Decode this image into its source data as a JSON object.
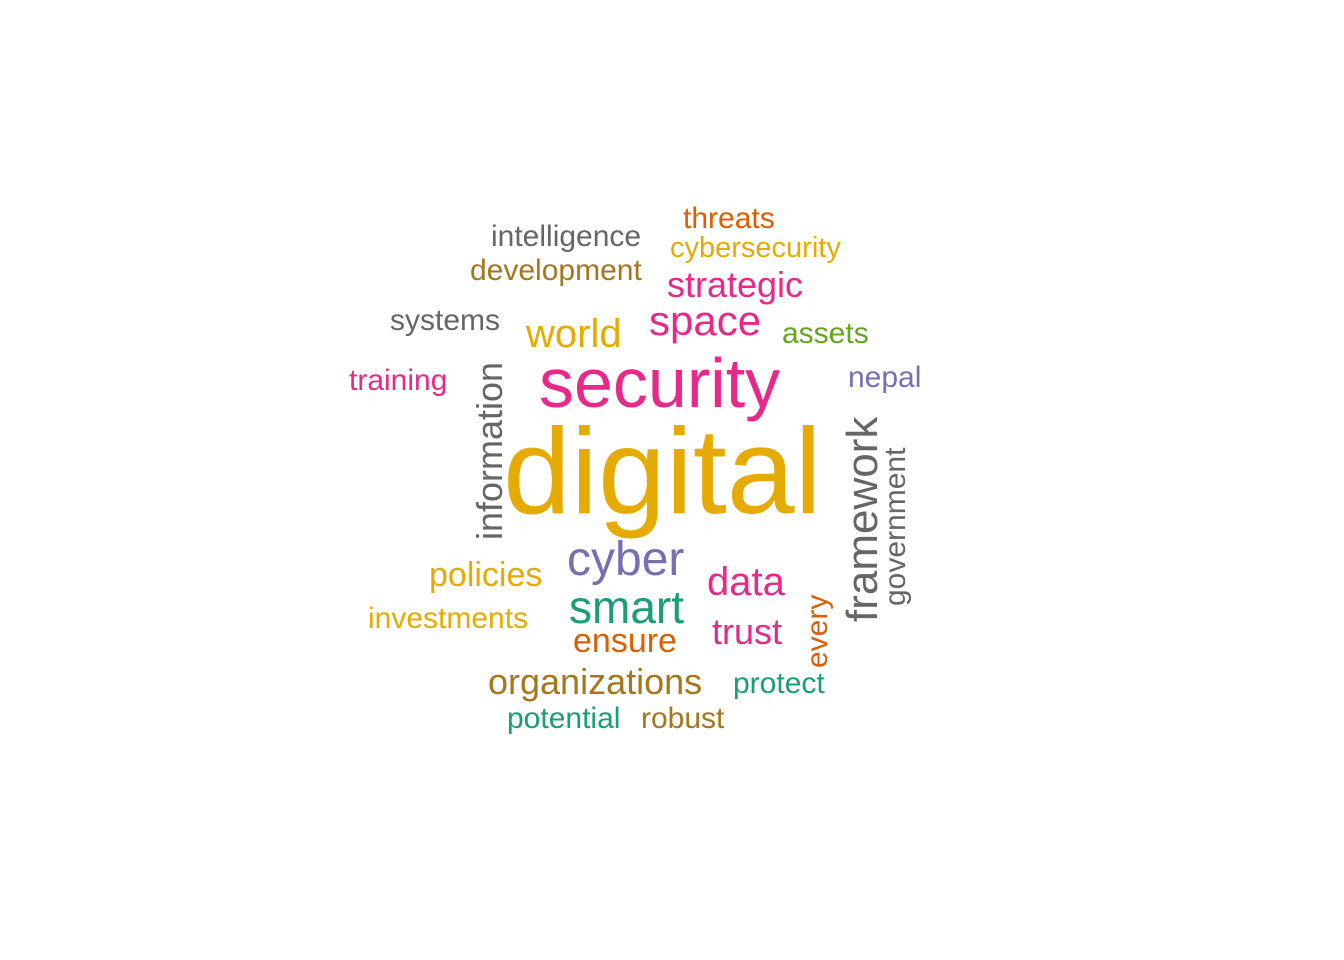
{
  "colors": {
    "gold": "#e6ab02",
    "magenta": "#e7298a",
    "gray": "#666666",
    "teal": "#1b9e77",
    "orange": "#d95f02",
    "olive": "#a6761d",
    "purple": "#7570b3",
    "green": "#66a61e"
  },
  "words": {
    "digital": "digital",
    "security": "security",
    "cyber": "cyber",
    "smart": "smart",
    "data": "data",
    "space": "space",
    "world": "world",
    "strategic": "strategic",
    "information": "information",
    "framework": "framework",
    "government": "government",
    "policies": "policies",
    "ensure": "ensure",
    "trust": "trust",
    "organizations": "organizations",
    "intelligence": "intelligence",
    "development": "development",
    "threats": "threats",
    "cybersecurity": "cybersecurity",
    "systems": "systems",
    "assets": "assets",
    "training": "training",
    "nepal": "nepal",
    "investments": "investments",
    "every": "every",
    "protect": "protect",
    "potential": "potential",
    "robust": "robust"
  }
}
